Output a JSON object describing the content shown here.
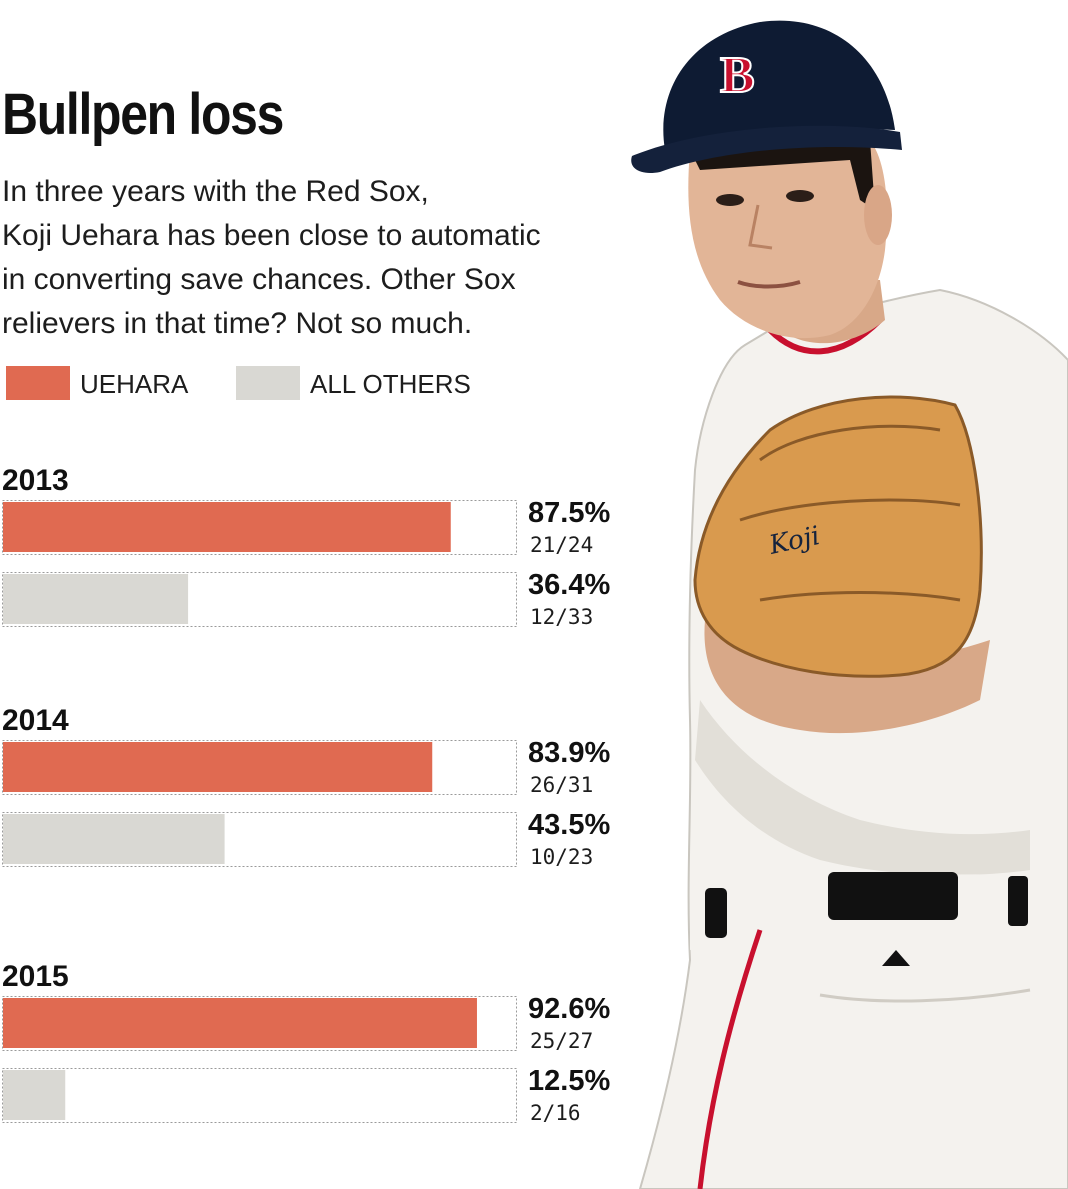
{
  "chart_data": {
    "type": "bar",
    "title": "Bullpen loss",
    "subtitle": [
      "In three years with the Red Sox,",
      "Koji Uehara has been close to automatic",
      "in converting save chances. Other Sox",
      "relievers in that time? Not so much."
    ],
    "legend": [
      {
        "name": "UEHARA",
        "color": "#e06a51"
      },
      {
        "name": "ALL OTHERS",
        "color": "#d9d8d3"
      }
    ],
    "xlim": [
      0,
      100
    ],
    "groups": [
      {
        "year": "2013",
        "bars": [
          {
            "series": "UEHARA",
            "value": 87.5,
            "label": "87.5%",
            "detail": "21/24"
          },
          {
            "series": "ALL OTHERS",
            "value": 36.4,
            "label": "36.4%",
            "detail": "12/33"
          }
        ]
      },
      {
        "year": "2014",
        "bars": [
          {
            "series": "UEHARA",
            "value": 83.9,
            "label": "83.9%",
            "detail": "26/31"
          },
          {
            "series": "ALL OTHERS",
            "value": 43.5,
            "label": "43.5%",
            "detail": "10/23"
          }
        ]
      },
      {
        "year": "2015",
        "bars": [
          {
            "series": "UEHARA",
            "value": 92.6,
            "label": "92.6%",
            "detail": "25/27"
          },
          {
            "series": "ALL OTHERS",
            "value": 12.5,
            "label": "12.5%",
            "detail": "2/16"
          }
        ]
      }
    ]
  },
  "photo": {
    "cap_letter": "B",
    "glove_text": "Koji",
    "colors": {
      "cap": "#0e1b33",
      "cap_logo": "#c8102e",
      "jersey": "#f4f2ee",
      "glove": "#d99a4e",
      "belt": "#111111"
    }
  }
}
